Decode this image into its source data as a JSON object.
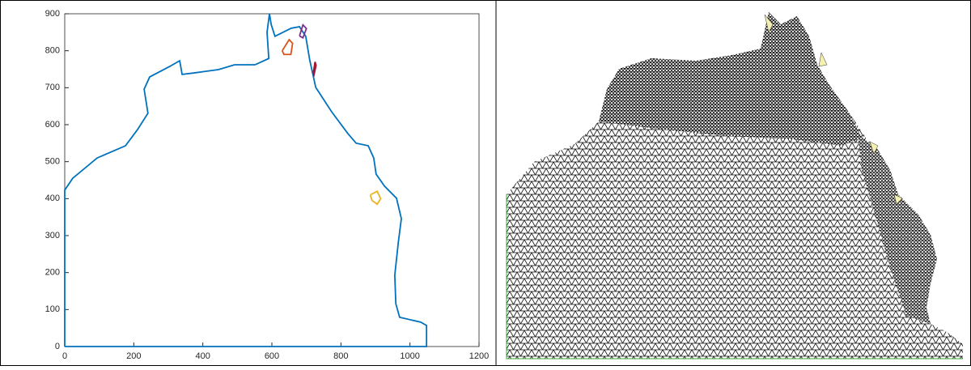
{
  "chart_data": {
    "type": "line",
    "xlim": [
      0,
      1200
    ],
    "ylim": [
      0,
      900
    ],
    "xticks": [
      0,
      200,
      400,
      600,
      800,
      1000,
      1200
    ],
    "yticks": [
      0,
      100,
      200,
      300,
      400,
      500,
      600,
      700,
      800,
      900
    ],
    "series": [
      {
        "color": "#0072bd",
        "x": [
          0,
          1048,
          1048,
          1031,
          970,
          959,
          956,
          966,
          975,
          961,
          926,
          902,
          895,
          879,
          844,
          820,
          773,
          727,
          710,
          698,
          680,
          656,
          609,
          598,
          593,
          586,
          591,
          551,
          492,
          445,
          375,
          340,
          333,
          305,
          246,
          230,
          241,
          211,
          176,
          94,
          23,
          0,
          0
        ],
        "values": [
          0,
          0,
          57,
          66,
          79,
          116,
          193,
          280,
          346,
          401,
          434,
          466,
          510,
          543,
          550,
          576,
          635,
          701,
          773,
          839,
          865,
          861,
          839,
          871,
          900,
          850,
          779,
          762,
          762,
          749,
          740,
          736,
          773,
          758,
          729,
          696,
          631,
          587,
          543,
          510,
          455,
          423,
          0
        ]
      },
      {
        "color": "#edb120",
        "x": [
          885,
          905,
          915,
          905,
          890,
          885
        ],
        "values": [
          410,
          420,
          400,
          385,
          395,
          410
        ]
      },
      {
        "color": "#d95319",
        "x": [
          630,
          650,
          660,
          655,
          635,
          630
        ],
        "values": [
          800,
          830,
          820,
          790,
          790,
          800
        ]
      },
      {
        "color": "#7e2f8e",
        "x": [
          680,
          690,
          700,
          690,
          680
        ],
        "values": [
          840,
          870,
          860,
          835,
          840
        ]
      },
      {
        "color": "#a2142f",
        "x": [
          720,
          725,
          728,
          722,
          720
        ],
        "values": [
          740,
          770,
          760,
          735,
          740
        ]
      }
    ]
  }
}
